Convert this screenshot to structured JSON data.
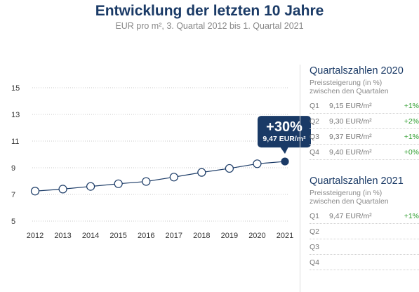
{
  "header": {
    "title": "Entwicklung der letzten 10 Jahre",
    "subtitle": "EUR pro m², 3. Quartal 2012 bis 1. Quartal 2021"
  },
  "colors": {
    "navy": "#1a3a66",
    "green": "#2e9d2e",
    "grey": "#888888"
  },
  "chart_data": {
    "type": "line",
    "title": "Entwicklung der letzten 10 Jahre",
    "subtitle": "EUR pro m², 3. Quartal 2012 bis 1. Quartal 2021",
    "xlabel": "",
    "ylabel": "",
    "x": [
      2012,
      2013,
      2014,
      2015,
      2016,
      2017,
      2018,
      2019,
      2020,
      2021
    ],
    "series": [
      {
        "values": [
          7.25,
          7.4,
          7.6,
          7.8,
          7.97,
          8.3,
          8.65,
          8.95,
          9.3,
          9.47
        ]
      }
    ],
    "yticks": [
      5,
      7,
      9,
      11,
      13,
      15
    ],
    "xticks": [
      "2012",
      "2013",
      "2014",
      "2015",
      "2016",
      "2017",
      "2018",
      "2019",
      "2020",
      "2021"
    ],
    "ylim": [
      5,
      15
    ],
    "grid": "horizontal dotted",
    "annotation": {
      "main": "+30%",
      "sub": "9,47 EUR/m²",
      "x": 2021,
      "y": 9.47
    }
  },
  "panel2020": {
    "title": "Quartalszahlen 2020",
    "desc1": "Preissteigerung (in %)",
    "desc2": "zwischen den Quartalen",
    "rows": [
      {
        "q": "Q1",
        "v": "9,15 EUR/m²",
        "c": "+1%"
      },
      {
        "q": "Q2",
        "v": "9,30 EUR/m²",
        "c": "+2%"
      },
      {
        "q": "Q3",
        "v": "9,37 EUR/m²",
        "c": "+1%"
      },
      {
        "q": "Q4",
        "v": "9,40 EUR/m²",
        "c": "+0%"
      }
    ]
  },
  "panel2021": {
    "title": "Quartalszahlen 2021",
    "desc1": "Preissteigerung (in %)",
    "desc2": "zwischen den Quartalen",
    "rows": [
      {
        "q": "Q1",
        "v": "9,47 EUR/m²",
        "c": "+1%"
      },
      {
        "q": "Q2",
        "v": "",
        "c": ""
      },
      {
        "q": "Q3",
        "v": "",
        "c": ""
      },
      {
        "q": "Q4",
        "v": "",
        "c": ""
      }
    ]
  }
}
